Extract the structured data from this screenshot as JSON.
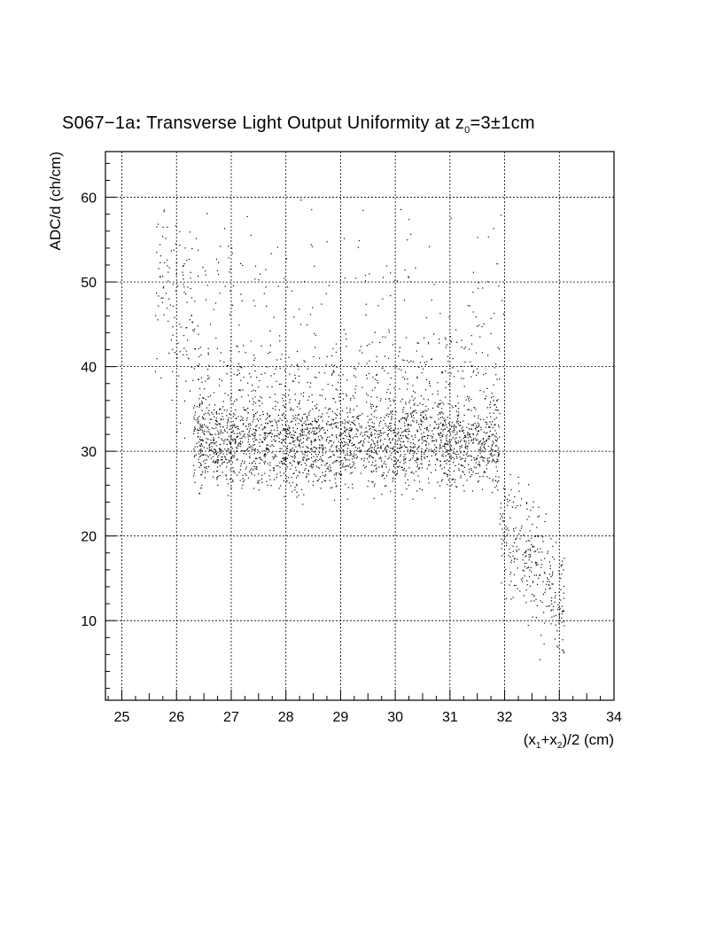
{
  "chart_data": {
    "type": "scatter",
    "title": "S067−1a: Transverse Light Output Uniformity at z0=3±1cm",
    "title_parts": {
      "prefix": "S067−1a",
      "colon": ":",
      "main": " Transverse Light Output Uniformity at z",
      "subscript": "0",
      "suffix": "=3±1cm"
    },
    "xlabel": "(x1+x2)/2 (cm)",
    "xlabel_parts": {
      "open": "(x",
      "sub1": "1",
      "plus": "+x",
      "sub2": "2",
      "rest": ")/2 (cm)"
    },
    "ylabel": "ADC/d (ch/cm)",
    "xlim": [
      24.7,
      34.0
    ],
    "ylim": [
      0.6,
      65.4
    ],
    "x_ticks": [
      "25",
      "26",
      "27",
      "28",
      "29",
      "30",
      "31",
      "32",
      "33",
      "34"
    ],
    "y_ticks": [
      "10",
      "20",
      "30",
      "40",
      "50",
      "60"
    ],
    "grid": true,
    "marker": "dot",
    "series": [
      {
        "color": "#000000",
        "note_regions": [
          {
            "x": [
              25.6,
              26.3
            ],
            "y_center": 48,
            "y_spread": 11,
            "count": 110
          },
          {
            "x": [
              26.3,
              31.9
            ],
            "y_center": 31,
            "y_spread": 5,
            "count": 2400
          },
          {
            "x": [
              26.3,
              31.9
            ],
            "y_center": 38,
            "y_spread": 7,
            "count": 500
          },
          {
            "x": [
              26.0,
              32.0
            ],
            "y_center": 50,
            "y_spread": 9,
            "count": 160
          },
          {
            "x": [
              31.9,
              33.1
            ],
            "y_center": 18,
            "y_spread": 7,
            "count": 300
          }
        ]
      }
    ]
  }
}
